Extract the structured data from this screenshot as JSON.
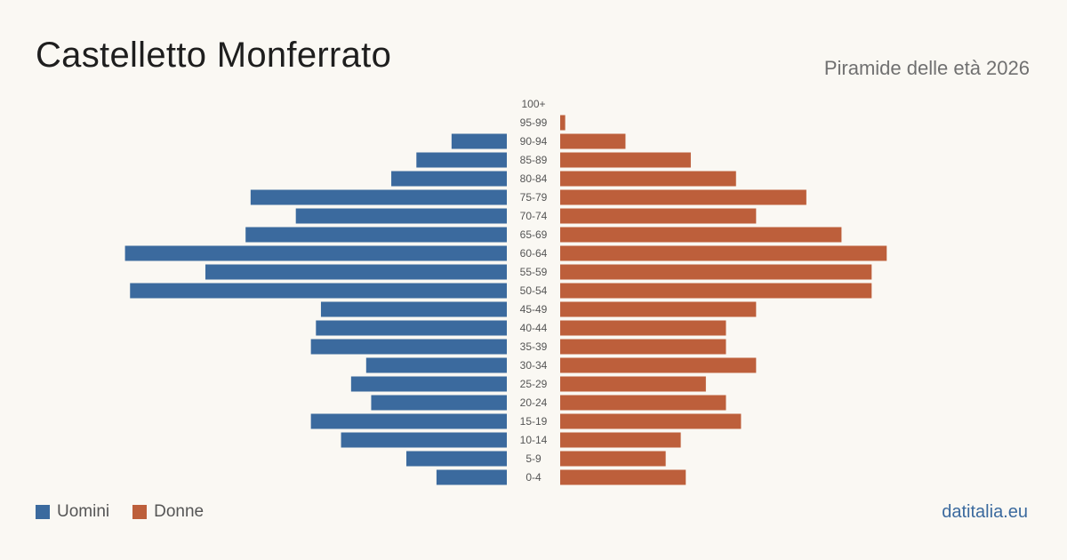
{
  "header": {
    "title": "Castelletto  Monferrato",
    "subtitle": "Piramide delle età 2026"
  },
  "legend": {
    "men_label": "Uomini",
    "women_label": "Donne"
  },
  "footer": {
    "brand": "datitalia.eu"
  },
  "colors": {
    "men": "#3b6a9e",
    "women": "#bd5f3b",
    "label": "#555555"
  },
  "chart_data": {
    "type": "bar",
    "orientation": "horizontal-pyramid",
    "categories": [
      "100+",
      "95-99",
      "90-94",
      "85-89",
      "80-84",
      "75-79",
      "70-74",
      "65-69",
      "60-64",
      "55-59",
      "50-54",
      "45-49",
      "40-44",
      "35-39",
      "30-34",
      "25-29",
      "20-24",
      "15-19",
      "10-14",
      "5-9",
      "0-4"
    ],
    "series": [
      {
        "name": "Uomini",
        "values": [
          0,
          0,
          11,
          18,
          23,
          51,
          42,
          52,
          76,
          60,
          75,
          37,
          38,
          39,
          28,
          31,
          27,
          39,
          33,
          20,
          14
        ]
      },
      {
        "name": "Donne",
        "values": [
          0,
          1,
          13,
          26,
          35,
          49,
          39,
          56,
          65,
          62,
          62,
          39,
          33,
          33,
          39,
          29,
          33,
          36,
          24,
          21,
          25
        ]
      }
    ]
  }
}
